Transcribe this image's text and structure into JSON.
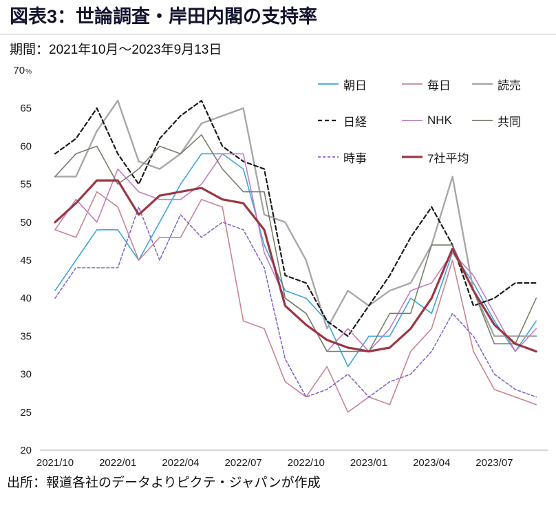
{
  "header": {
    "title": "図表3：世論調査・岸田内閣の支持率",
    "subtitle": "期間：2021年10月～2023年9月13日"
  },
  "footer": {
    "source": "出所：報道各社のデータよりピクテ・ジャパンが作成"
  },
  "chart_data": {
    "type": "line",
    "title": "図表3：世論調査・岸田内閣の支持率",
    "unit": "%",
    "ylim": [
      20,
      70
    ],
    "ytick_step": 5,
    "grid": false,
    "legend_position": "top-right-inside",
    "x": [
      "2021/10",
      "2021/11",
      "2021/12",
      "2022/01",
      "2022/02",
      "2022/03",
      "2022/04",
      "2022/05",
      "2022/06",
      "2022/07",
      "2022/08",
      "2022/09",
      "2022/10",
      "2022/11",
      "2022/12",
      "2023/01",
      "2023/02",
      "2023/03",
      "2023/04",
      "2023/05",
      "2023/06",
      "2023/07",
      "2023/08",
      "2023/09"
    ],
    "xtick_labels": [
      "2021/10",
      "2022/01",
      "2022/04",
      "2022/07",
      "2022/10",
      "2023/01",
      "2023/04",
      "2023/07"
    ],
    "xtick_every": 3,
    "series": [
      {
        "key": "asahi",
        "name": "朝日",
        "color": "#3aa6dc",
        "dash": null,
        "width": 1.6,
        "values": [
          41,
          45,
          49,
          49,
          45,
          50,
          55,
          59,
          59,
          57,
          47,
          41,
          40,
          37,
          31,
          35,
          35,
          40,
          38,
          46,
          42,
          37,
          33,
          37
        ]
      },
      {
        "key": "mainichi",
        "name": "毎日",
        "color": "#c8848f",
        "dash": null,
        "width": 1.6,
        "values": [
          49,
          48,
          54,
          52,
          45,
          48,
          48,
          53,
          52,
          37,
          36,
          29,
          27,
          31,
          25,
          27,
          26,
          33,
          36,
          45,
          33,
          28,
          27,
          26
        ]
      },
      {
        "key": "yomiuri",
        "name": "読売",
        "color": "#a7a7a7",
        "dash": null,
        "width": 2.4,
        "values": [
          56,
          56,
          62,
          66,
          58,
          57,
          59,
          63,
          64,
          65,
          51,
          50,
          45,
          36,
          41,
          39,
          41,
          42,
          47,
          56,
          41,
          35,
          35,
          35
        ]
      },
      {
        "key": "nikkei",
        "name": "日経",
        "color": "#1a1a1a",
        "dash": "6 4",
        "width": 2.2,
        "values": [
          59,
          61,
          65,
          59,
          55,
          61,
          64,
          66,
          60,
          58,
          57,
          43,
          42,
          37,
          35,
          39,
          43,
          48,
          52,
          47,
          39,
          40,
          42,
          42
        ]
      },
      {
        "key": "nhk",
        "name": "NHK",
        "color": "#c07ec0",
        "dash": null,
        "width": 1.6,
        "values": [
          49,
          53,
          50,
          57,
          54,
          53,
          53,
          55,
          59,
          59,
          46,
          40,
          38,
          33,
          36,
          33,
          36,
          41,
          42,
          46,
          43,
          38,
          33,
          36
        ]
      },
      {
        "key": "kyodo",
        "name": "共同",
        "color": "#74806b",
        "dash": null,
        "width": 1.6,
        "values": [
          56,
          59,
          60,
          55,
          57,
          60,
          59,
          61.5,
          57,
          54,
          54,
          40,
          38,
          33,
          33,
          33,
          38,
          38,
          47,
          47,
          41,
          34,
          34,
          40
        ]
      },
      {
        "key": "jiji",
        "name": "時事",
        "color": "#8465c8",
        "dash": "4 3",
        "width": 1.6,
        "values": [
          40,
          44,
          44,
          44,
          52,
          45,
          51,
          48,
          50,
          49,
          44,
          32,
          27,
          28,
          30,
          27,
          29,
          30,
          33,
          38,
          35,
          30,
          28,
          27
        ]
      },
      {
        "key": "average",
        "name": "7社平均",
        "color": "#9c3642",
        "dash": null,
        "width": 3.2,
        "values": [
          50,
          52.5,
          55.5,
          55.5,
          51,
          53.5,
          54,
          54.5,
          53,
          52.5,
          49,
          39,
          36.5,
          34.5,
          33.5,
          33,
          33.5,
          36,
          40,
          46.5,
          41,
          36.5,
          34,
          33
        ]
      }
    ],
    "legend_rows": [
      [
        "asahi",
        "mainichi",
        "yomiuri"
      ],
      [
        "nikkei",
        "nhk",
        "kyodo"
      ],
      [
        "jiji",
        "average"
      ]
    ]
  }
}
